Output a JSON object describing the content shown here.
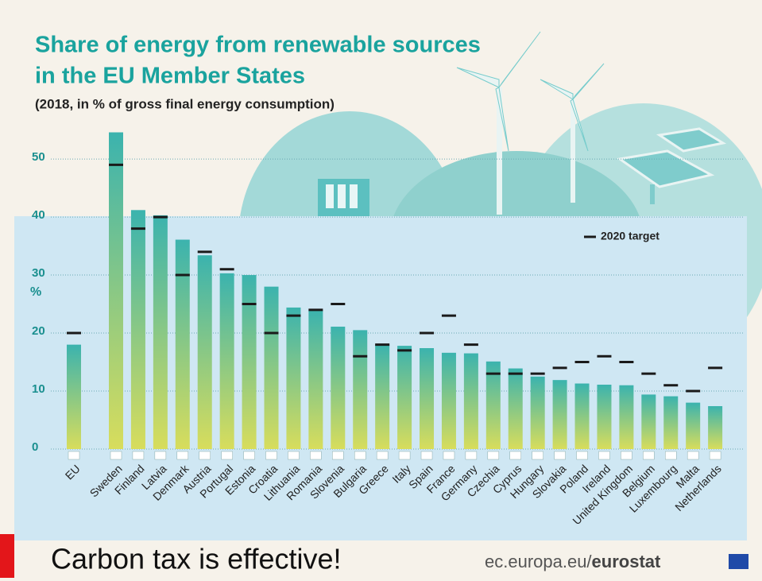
{
  "chart_data": {
    "type": "bar",
    "title": [
      "Share of energy from renewable sources",
      "in the EU Member States"
    ],
    "subtitle": "(2018, in % of gross final energy consumption)",
    "y_label": "%",
    "categories": [
      "EU",
      "Sweden",
      "Finland",
      "Latvia",
      "Denmark",
      "Austria",
      "Portugal",
      "Estonia",
      "Croatia",
      "Lithuania",
      "Romania",
      "Slovenia",
      "Bulgaria",
      "Greece",
      "Italy",
      "Spain",
      "France",
      "Germany",
      "Czechia",
      "Cyprus",
      "Hungary",
      "Slovakia",
      "Poland",
      "Ireland",
      "United Kingdom",
      "Belgium",
      "Luxembourg",
      "Malta",
      "Netherlands"
    ],
    "values": [
      18.0,
      54.6,
      41.2,
      40.3,
      36.1,
      33.4,
      30.3,
      30.0,
      28.0,
      24.4,
      23.9,
      21.1,
      20.5,
      18.0,
      17.8,
      17.4,
      16.6,
      16.5,
      15.1,
      13.9,
      12.5,
      11.9,
      11.3,
      11.1,
      11.0,
      9.4,
      9.1,
      8.0,
      7.4
    ],
    "target": {
      "name": "2020 target",
      "color": "#1a1a1a",
      "values": [
        20,
        49,
        38,
        40,
        30,
        34,
        31,
        25,
        20,
        23,
        24,
        25,
        16,
        18,
        17,
        20,
        23,
        18,
        13,
        13,
        13,
        14,
        15,
        16,
        15,
        13,
        11,
        10,
        14
      ]
    },
    "colors": [
      "#3bb3ae",
      "#d8dd5c"
    ],
    "ylim": [
      0,
      57
    ],
    "yticks": [
      0,
      10,
      20,
      30,
      40,
      50
    ],
    "grid": true
  },
  "caption": "Carbon tax is effective!",
  "source": [
    "ec.europa.eu/",
    "eurostat"
  ]
}
